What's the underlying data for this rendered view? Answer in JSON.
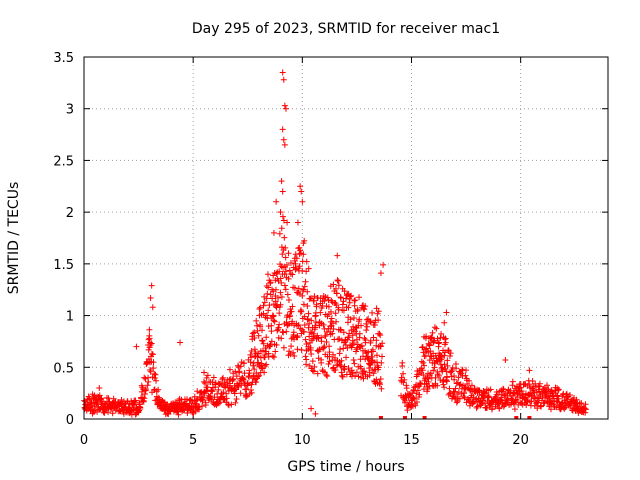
{
  "chart_data": {
    "type": "scatter",
    "title": "Day 295 of 2023, SRMTID for receiver mac1",
    "xlabel": "GPS time / hours",
    "ylabel": "SRMTID / TECUs",
    "xlim": [
      0,
      24
    ],
    "ylim": [
      0,
      3.5
    ],
    "grid": true,
    "marker": "+",
    "color": "#ff0000",
    "xticks": [
      0,
      5,
      10,
      15,
      20
    ],
    "xtick_labels": [
      "0",
      "5",
      "10",
      "15",
      "20"
    ],
    "yticks": [
      0,
      0.5,
      1,
      1.5,
      2,
      2.5,
      3,
      3.5
    ],
    "ytick_labels": [
      "0",
      "0.5",
      "1",
      "1.5",
      "2",
      "2.5",
      "3",
      "3.5"
    ],
    "series": [
      {
        "name": "SRMTID",
        "profile": [
          [
            0,
            0.12
          ],
          [
            0.5,
            0.16
          ],
          [
            1,
            0.13
          ],
          [
            1.5,
            0.12
          ],
          [
            2,
            0.11
          ],
          [
            2.5,
            0.12
          ],
          [
            2.8,
            0.3
          ],
          [
            3,
            0.6
          ],
          [
            3.2,
            0.35
          ],
          [
            3.5,
            0.12
          ],
          [
            4,
            0.11
          ],
          [
            4.5,
            0.12
          ],
          [
            5,
            0.12
          ],
          [
            5.5,
            0.3
          ],
          [
            6,
            0.25
          ],
          [
            6.5,
            0.3
          ],
          [
            7,
            0.35
          ],
          [
            7.5,
            0.4
          ],
          [
            8,
            0.7
          ],
          [
            8.5,
            1.0
          ],
          [
            9,
            1.2
          ],
          [
            9.2,
            1.4
          ],
          [
            9.5,
            1.0
          ],
          [
            10,
            1.2
          ],
          [
            10.5,
            0.8
          ],
          [
            11,
            0.8
          ],
          [
            11.5,
            0.9
          ],
          [
            12,
            0.85
          ],
          [
            12.5,
            0.8
          ],
          [
            13,
            0.7
          ],
          [
            13.5,
            0.7
          ],
          [
            13.6,
            0.5
          ],
          [
            14.5,
            0.45
          ],
          [
            14.8,
            0.2
          ],
          [
            15,
            0.15
          ],
          [
            15.6,
            0.55
          ],
          [
            16,
            0.6
          ],
          [
            16.5,
            0.55
          ],
          [
            17,
            0.35
          ],
          [
            17.5,
            0.3
          ],
          [
            18,
            0.2
          ],
          [
            19,
            0.18
          ],
          [
            19.5,
            0.22
          ],
          [
            20,
            0.25
          ],
          [
            20.5,
            0.28
          ],
          [
            21,
            0.22
          ],
          [
            21.5,
            0.2
          ],
          [
            22,
            0.18
          ],
          [
            22.5,
            0.12
          ],
          [
            23,
            0.1
          ]
        ],
        "outliers": [
          [
            9.1,
            3.35
          ],
          [
            9.15,
            3.28
          ],
          [
            9.2,
            3.03
          ],
          [
            9.25,
            3.0
          ],
          [
            9.1,
            2.8
          ],
          [
            9.15,
            2.7
          ],
          [
            9.2,
            2.65
          ],
          [
            9.05,
            2.3
          ],
          [
            9.1,
            2.2
          ],
          [
            9.0,
            2.0
          ],
          [
            9.3,
            1.9
          ],
          [
            8.8,
            2.1
          ],
          [
            8.7,
            1.8
          ],
          [
            9.9,
            2.25
          ],
          [
            9.95,
            2.2
          ],
          [
            10.0,
            2.1
          ],
          [
            9.8,
            1.9
          ],
          [
            10.05,
            1.7
          ],
          [
            3.1,
            1.29
          ],
          [
            3.05,
            1.17
          ],
          [
            3.15,
            1.08
          ],
          [
            3.0,
            0.78
          ],
          [
            2.4,
            0.7
          ],
          [
            4.4,
            0.74
          ],
          [
            11.6,
            1.58
          ],
          [
            13.7,
            1.49
          ],
          [
            13.6,
            1.41
          ],
          [
            16.6,
            1.03
          ],
          [
            16.5,
            0.93
          ],
          [
            19.3,
            0.57
          ],
          [
            20.4,
            0.47
          ],
          [
            0.7,
            0.3
          ],
          [
            10.4,
            0.1
          ],
          [
            10.6,
            0.05
          ]
        ],
        "baseline_points": [
          13.6,
          14.7,
          15.6,
          19.8,
          20.4
        ]
      }
    ]
  }
}
